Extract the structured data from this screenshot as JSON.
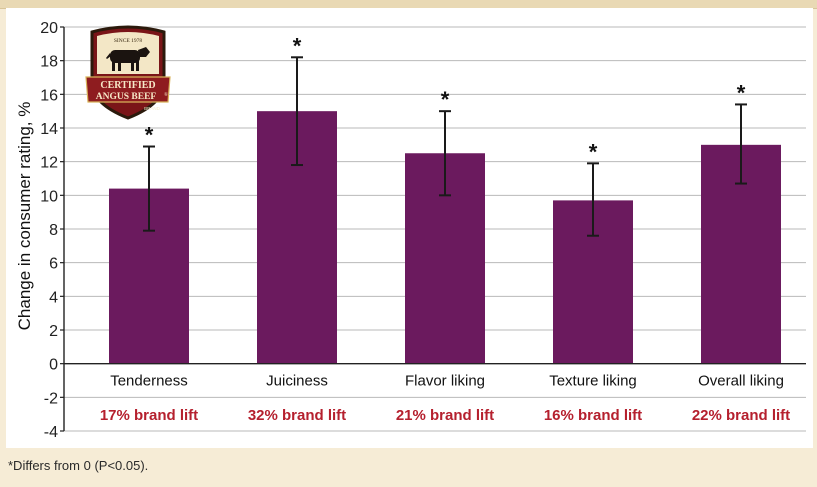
{
  "chart_data": {
    "type": "bar",
    "categories": [
      "Tenderness",
      "Juiciness",
      "Flavor liking",
      "Texture liking",
      "Overall liking"
    ],
    "values": [
      10.4,
      15.0,
      12.5,
      9.7,
      13.0
    ],
    "error_low": [
      7.9,
      11.8,
      10.0,
      7.6,
      10.7
    ],
    "error_high": [
      12.9,
      18.2,
      15.0,
      11.9,
      15.4
    ],
    "significance_markers": [
      "*",
      "*",
      "*",
      "*",
      "*"
    ],
    "brand_lift_labels": [
      "17% brand lift",
      "32% brand lift",
      "21% brand lift",
      "16% brand lift",
      "22% brand lift"
    ],
    "ylabel": "Change in consumer rating, %",
    "xlabel": "",
    "title": "",
    "ylim": [
      -4,
      20
    ],
    "yticks": [
      20,
      18,
      16,
      14,
      12,
      10,
      8,
      6,
      4,
      2,
      0,
      -2,
      -4
    ],
    "grid": true,
    "legend": "none",
    "colors": {
      "bar": "#6b1a5e",
      "error": "#1a1a1a",
      "lift_text": "#b5202e",
      "grid": "#b9b9b9"
    }
  },
  "logo": {
    "top_text": "SINCE 1978",
    "line1": "CERTIFIED",
    "line2": "ANGUS BEEF",
    "brand": "BRAND",
    "registered": "®",
    "icon": "steer-icon"
  },
  "footnote": "*Differs from 0 (P<0.05)."
}
